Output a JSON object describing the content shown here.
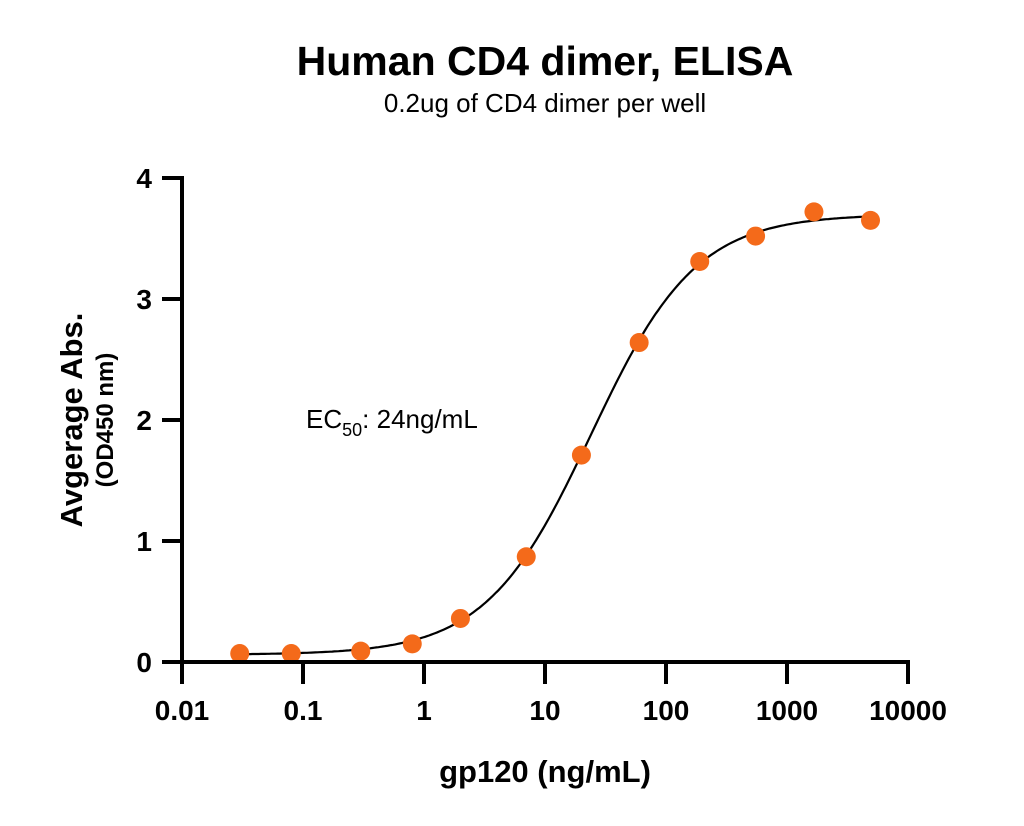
{
  "chart_data": {
    "type": "scatter",
    "title": "Human CD4 dimer, ELISA",
    "subtitle": "0.2ug of CD4 dimer per well",
    "xlabel": "gp120 (ng/mL)",
    "ylabel": "Avgerage Abs.",
    "ylabel_sub": "(OD450 nm)",
    "x_scale": "log",
    "xlim": [
      0.01,
      10000
    ],
    "ylim": [
      0,
      4
    ],
    "x_ticks": [
      "0.01",
      "0.1",
      "1",
      "10",
      "100",
      "1000",
      "10000"
    ],
    "y_ticks": [
      "0",
      "1",
      "2",
      "3",
      "4"
    ],
    "grid": false,
    "annotation": {
      "prefix": "EC",
      "subscript": "50",
      "suffix": ": 24ng/mL"
    },
    "fit_curve": "sigmoidal 4PL",
    "point_color": "#F46A1A",
    "curve_color": "#000000",
    "x": [
      0.03,
      0.08,
      0.3,
      0.8,
      2,
      7,
      20,
      60,
      190,
      550,
      1670,
      4900
    ],
    "y": [
      0.07,
      0.07,
      0.09,
      0.15,
      0.36,
      0.87,
      1.71,
      2.64,
      3.31,
      3.52,
      3.72,
      3.65
    ]
  }
}
